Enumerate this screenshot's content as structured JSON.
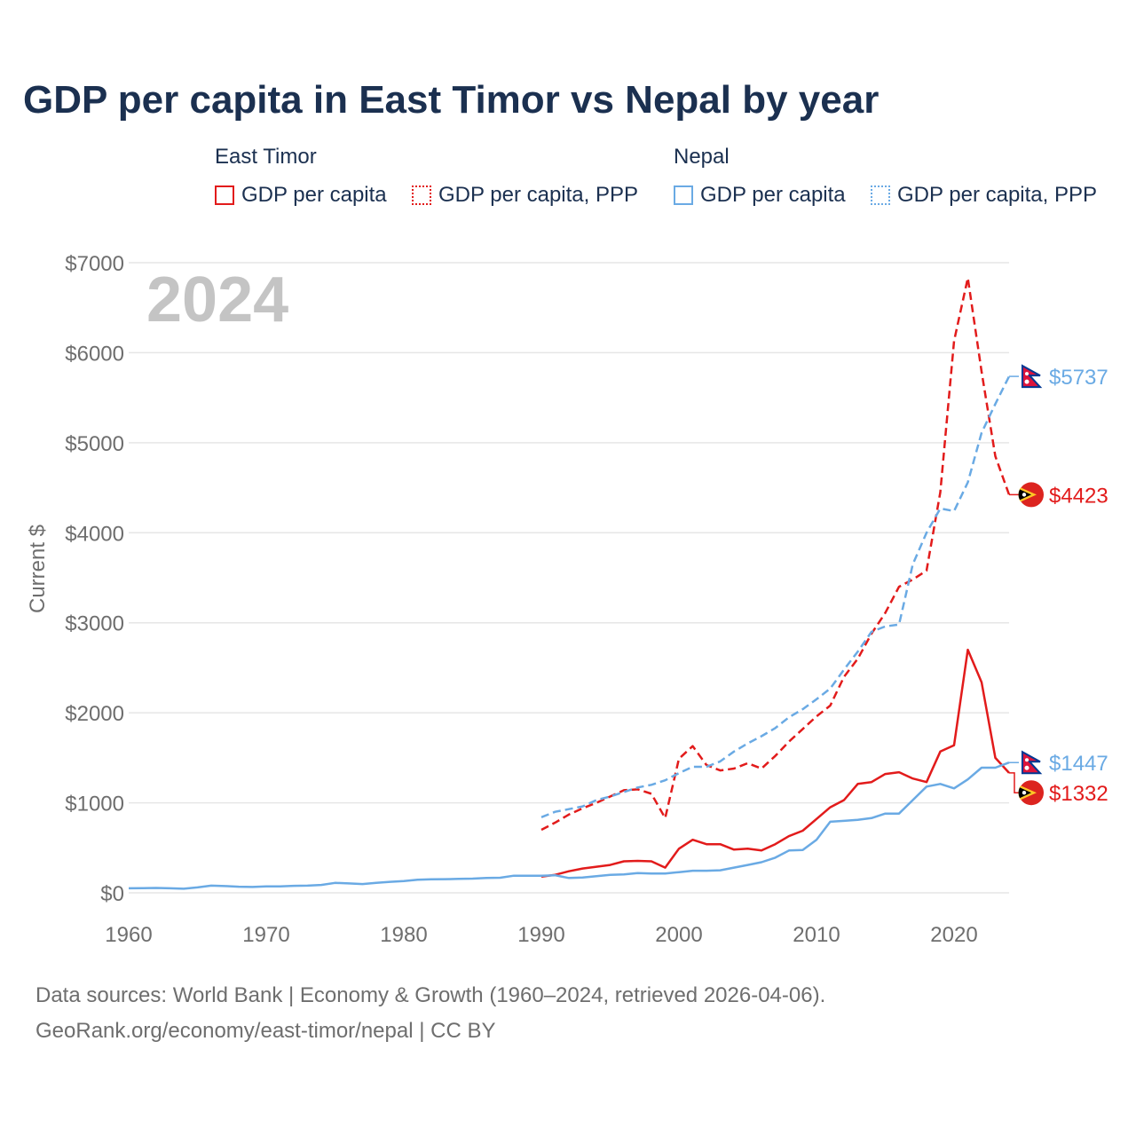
{
  "title": "GDP per capita in East Timor vs Nepal by year",
  "legend": {
    "east_timor": {
      "label": "East Timor",
      "gdp": "GDP per capita",
      "ppp": "GDP per capita, PPP"
    },
    "nepal": {
      "label": "Nepal",
      "gdp": "GDP per capita",
      "ppp": "GDP per capita, PPP"
    }
  },
  "year_label": "2024",
  "footer": {
    "line1": "Data sources: World Bank | Economy & Growth (1960–2024, retrieved 2026-04-06).",
    "line2": "GeoRank.org/economy/east-timor/nepal | CC BY"
  },
  "colors": {
    "east_timor": "#e21b1b",
    "nepal": "#6aaae4",
    "grid": "#e6e6e6",
    "axis_text": "#6e6e6e",
    "year_watermark": "#c4c4c4"
  },
  "chart_data": {
    "type": "line",
    "title": "GDP per capita in East Timor vs Nepal by year",
    "xlabel": "",
    "ylabel": "Current $",
    "xlim": [
      1960,
      2024
    ],
    "ylim": [
      0,
      7000
    ],
    "xticks": [
      1960,
      1970,
      1980,
      1990,
      2000,
      2010,
      2020
    ],
    "yticks": [
      0,
      1000,
      2000,
      3000,
      4000,
      5000,
      6000,
      7000
    ],
    "ytick_labels": [
      "$0",
      "$1000",
      "$2000",
      "$3000",
      "$4000",
      "$5000",
      "$6000",
      "$7000"
    ],
    "grid": true,
    "series": [
      {
        "name": "East Timor — GDP per capita",
        "country": "east_timor",
        "style": "solid",
        "x": [
          1990,
          1991,
          1992,
          1993,
          1994,
          1995,
          1996,
          1997,
          1998,
          1999,
          2000,
          2001,
          2002,
          2003,
          2004,
          2005,
          2006,
          2007,
          2008,
          2009,
          2010,
          2011,
          2012,
          2013,
          2014,
          2015,
          2016,
          2017,
          2018,
          2019,
          2020,
          2021,
          2022,
          2023,
          2024
        ],
        "values": [
          180,
          200,
          240,
          270,
          290,
          310,
          350,
          355,
          350,
          280,
          490,
          590,
          540,
          540,
          480,
          490,
          470,
          540,
          630,
          690,
          820,
          950,
          1030,
          1210,
          1230,
          1320,
          1340,
          1270,
          1230,
          1570,
          1640,
          2700,
          2340,
          1500,
          1332
        ],
        "end_label": "$1332"
      },
      {
        "name": "East Timor — GDP per capita, PPP",
        "country": "east_timor",
        "style": "dashed",
        "x": [
          1990,
          1991,
          1992,
          1993,
          1994,
          1995,
          1996,
          1997,
          1998,
          1999,
          2000,
          2001,
          2002,
          2003,
          2004,
          2005,
          2006,
          2007,
          2008,
          2009,
          2010,
          2011,
          2012,
          2013,
          2014,
          2015,
          2016,
          2017,
          2018,
          2019,
          2020,
          2021,
          2022,
          2023,
          2024
        ],
        "values": [
          700,
          780,
          870,
          940,
          1000,
          1070,
          1140,
          1150,
          1100,
          830,
          1490,
          1630,
          1420,
          1360,
          1380,
          1440,
          1380,
          1520,
          1680,
          1820,
          1960,
          2080,
          2400,
          2600,
          2880,
          3110,
          3400,
          3480,
          3580,
          4450,
          6130,
          6830,
          5790,
          4850,
          4423
        ],
        "end_label": "$4423"
      },
      {
        "name": "Nepal — GDP per capita",
        "country": "nepal",
        "style": "solid",
        "x": [
          1960,
          1961,
          1962,
          1963,
          1964,
          1965,
          1966,
          1967,
          1968,
          1969,
          1970,
          1971,
          1972,
          1973,
          1974,
          1975,
          1976,
          1977,
          1978,
          1979,
          1980,
          1981,
          1982,
          1983,
          1984,
          1985,
          1986,
          1987,
          1988,
          1989,
          1990,
          1991,
          1992,
          1993,
          1994,
          1995,
          1996,
          1997,
          1998,
          1999,
          2000,
          2001,
          2002,
          2003,
          2004,
          2005,
          2006,
          2007,
          2008,
          2009,
          2010,
          2011,
          2012,
          2013,
          2014,
          2015,
          2016,
          2017,
          2018,
          2019,
          2020,
          2021,
          2022,
          2023,
          2024
        ],
        "values": [
          50,
          52,
          54,
          50,
          45,
          60,
          80,
          75,
          68,
          65,
          72,
          72,
          78,
          80,
          88,
          110,
          105,
          98,
          110,
          122,
          130,
          145,
          150,
          152,
          155,
          158,
          165,
          168,
          190,
          190,
          190,
          195,
          165,
          170,
          185,
          200,
          205,
          220,
          215,
          215,
          230,
          245,
          245,
          250,
          280,
          310,
          340,
          390,
          470,
          475,
          590,
          790,
          800,
          810,
          830,
          880,
          880,
          1030,
          1180,
          1210,
          1160,
          1260,
          1390,
          1390,
          1447
        ],
        "end_label": "$1447"
      },
      {
        "name": "Nepal — GDP per capita, PPP",
        "country": "nepal",
        "style": "dashed",
        "x": [
          1990,
          1991,
          1992,
          1993,
          1994,
          1995,
          1996,
          1997,
          1998,
          1999,
          2000,
          2001,
          2002,
          2003,
          2004,
          2005,
          2006,
          2007,
          2008,
          2009,
          2010,
          2011,
          2012,
          2013,
          2014,
          2015,
          2016,
          2017,
          2018,
          2019,
          2020,
          2021,
          2022,
          2023,
          2024
        ],
        "values": [
          840,
          900,
          930,
          960,
          1030,
          1070,
          1120,
          1170,
          1200,
          1250,
          1330,
          1400,
          1400,
          1460,
          1570,
          1660,
          1740,
          1830,
          1950,
          2040,
          2150,
          2270,
          2480,
          2680,
          2900,
          2960,
          2980,
          3650,
          4000,
          4270,
          4240,
          4560,
          5110,
          5430,
          5737
        ],
        "end_label": "$5737"
      }
    ]
  }
}
